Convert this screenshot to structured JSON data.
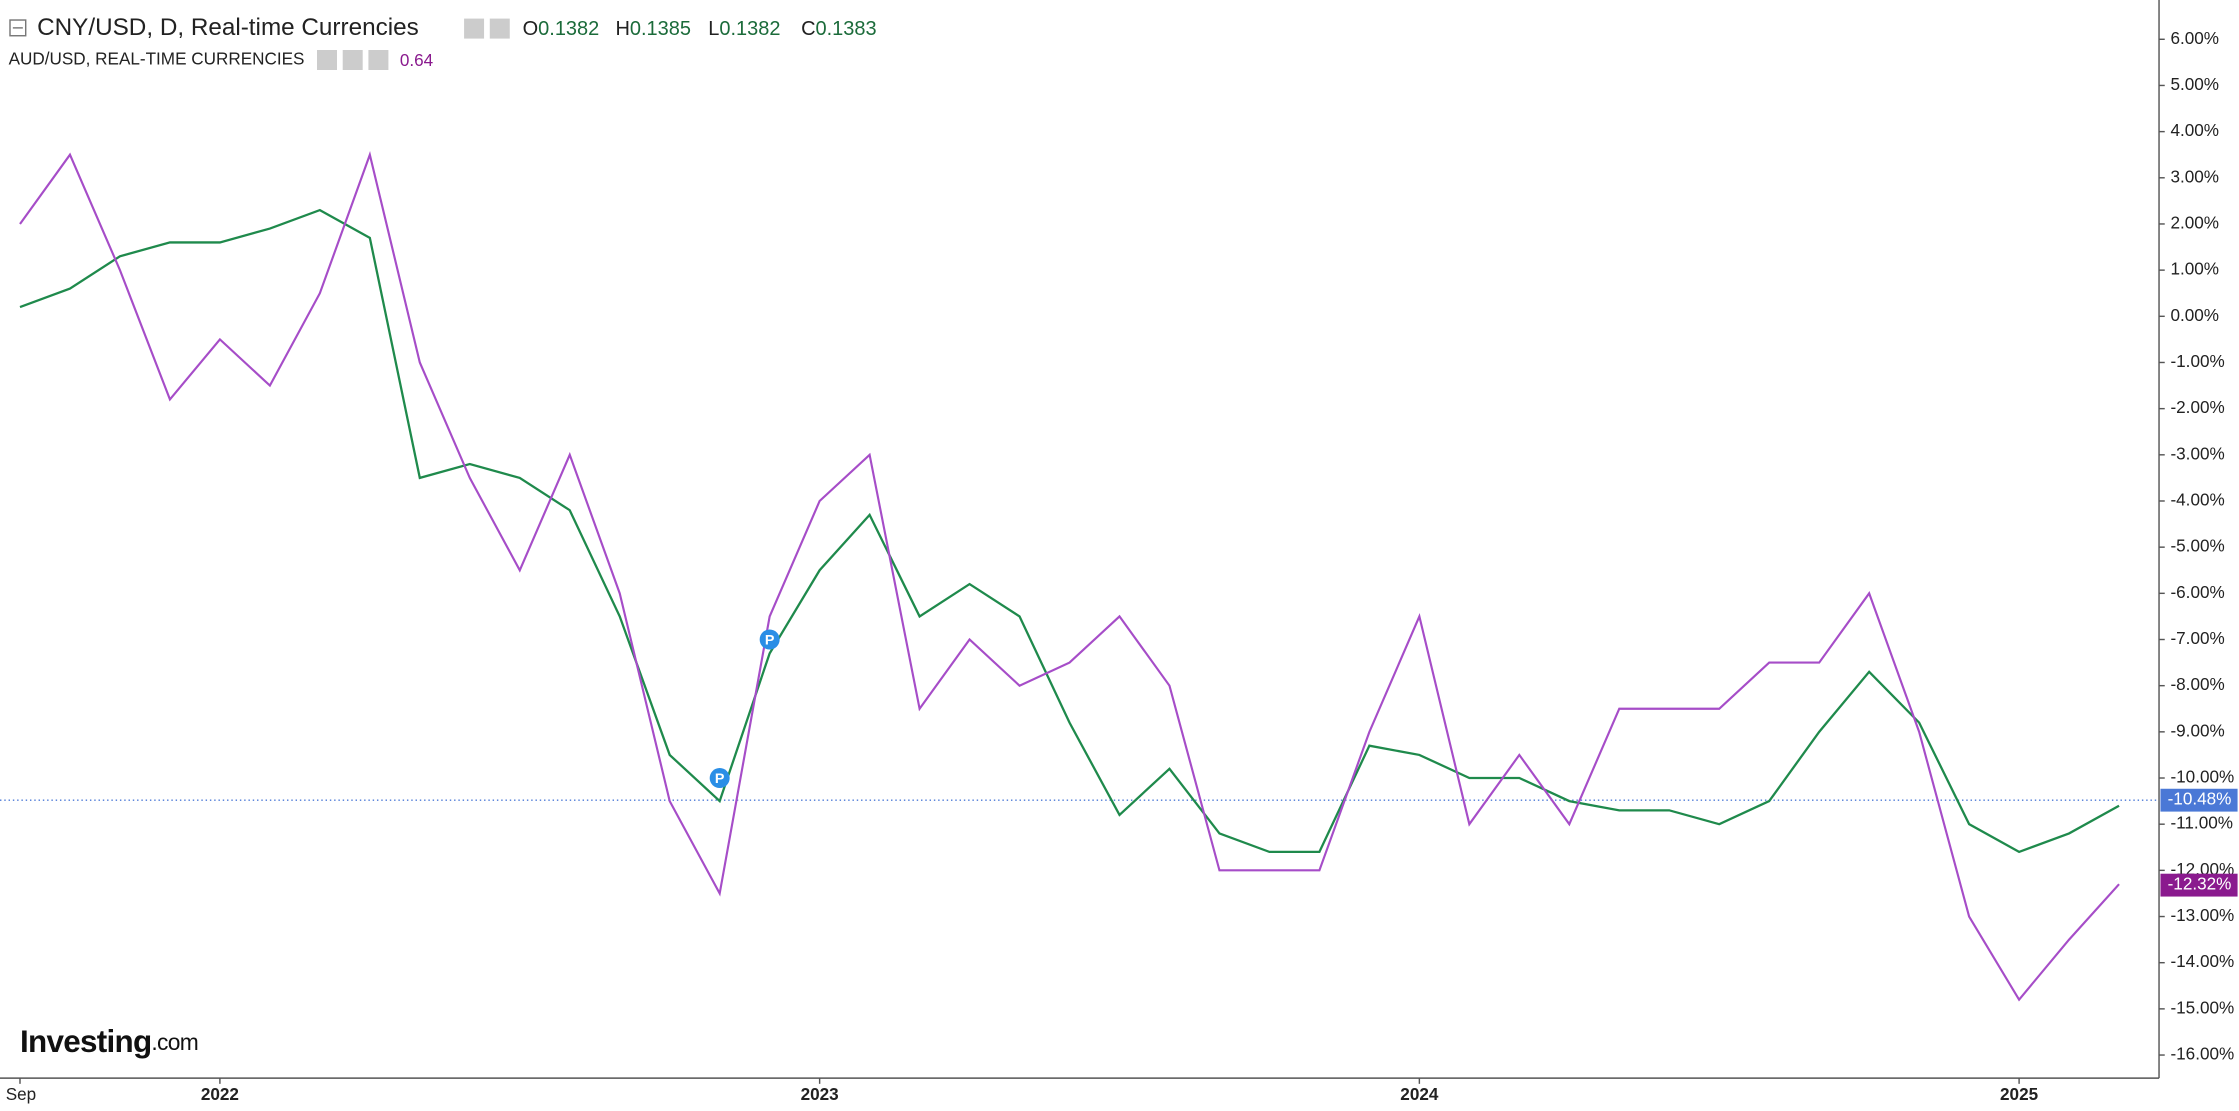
{
  "chart_data": {
    "type": "line",
    "header": {
      "symbol": "CNY/USD, D, Real-time Currencies",
      "ohlc": [
        {
          "key": "O",
          "value": "0.1382"
        },
        {
          "key": "H",
          "value": "0.1385"
        },
        {
          "key": "L",
          "value": "0.1382"
        },
        {
          "key": "C",
          "value": "0.1383"
        }
      ],
      "compare_symbol": "AUD/USD, REAL-TIME CURRENCIES",
      "compare_value": "0.64"
    },
    "logo": {
      "main": "Investing",
      "suffix": ".com"
    },
    "annotations": [
      {
        "text": "P",
        "category": 14,
        "y": -10
      },
      {
        "text": "P",
        "category": 15,
        "y": -7
      }
    ],
    "categories": [
      "Sep",
      null,
      null,
      null,
      "2022",
      null,
      null,
      null,
      null,
      null,
      null,
      null,
      null,
      null,
      null,
      null,
      "2023",
      null,
      null,
      null,
      null,
      null,
      null,
      null,
      null,
      null,
      null,
      null,
      "2024",
      null,
      null,
      null,
      null,
      null,
      null,
      null,
      null,
      null,
      null,
      null,
      "2025",
      null,
      null
    ],
    "series": [
      {
        "name": "CNY/USD",
        "color": "#1f8a4c",
        "values": [
          0.2,
          0.6,
          1.3,
          1.6,
          1.6,
          1.9,
          2.3,
          1.7,
          -3.5,
          -3.2,
          -3.5,
          -4.2,
          -6.5,
          -9.5,
          -10.5,
          -7.3,
          -5.5,
          -4.3,
          -6.5,
          -5.8,
          -6.5,
          -8.8,
          -10.8,
          -9.8,
          -11.2,
          -11.6,
          -11.6,
          -9.3,
          -9.5,
          -10,
          -10,
          -10.5,
          -10.7,
          -10.7,
          -11,
          -10.5,
          -9,
          -7.7,
          -8.8,
          -11,
          -11.6,
          -11.2,
          -10.6
        ]
      },
      {
        "name": "AUD/USD",
        "color": "#a64dc8",
        "values": [
          2.0,
          3.5,
          1,
          -1.8,
          -0.5,
          -1.5,
          0.5,
          3.5,
          -1,
          -3.5,
          -5.5,
          -3,
          -6,
          -10.5,
          -12.5,
          -6.5,
          -4,
          -3,
          -8.5,
          -7,
          -8,
          -7.5,
          -6.5,
          -8,
          -12,
          -12,
          -12,
          -9,
          -6.5,
          -11,
          -9.5,
          -11,
          -8.5,
          -8.5,
          -8.5,
          -7.5,
          -7.5,
          -6,
          -9,
          -13,
          -14.8,
          -13.5,
          -12.3
        ]
      }
    ],
    "price_tags": [
      {
        "value": -10.48,
        "label": "-10.48%",
        "color": "#4a78d6"
      },
      {
        "value": -12.32,
        "label": "-12.32%",
        "color": "#8a1a8e"
      }
    ],
    "ylim": [
      -16.5,
      6.85
    ],
    "yticks": [
      {
        "value": 6,
        "label": "6.00%"
      },
      {
        "value": 5,
        "label": "5.00%"
      },
      {
        "value": 4,
        "label": "4.00%"
      },
      {
        "value": 3,
        "label": "3.00%"
      },
      {
        "value": 2,
        "label": "2.00%"
      },
      {
        "value": 1,
        "label": "1.00%"
      },
      {
        "value": 0,
        "label": "0.00%"
      },
      {
        "value": -1,
        "label": "-1.00%"
      },
      {
        "value": -2,
        "label": "-2.00%"
      },
      {
        "value": -3,
        "label": "-3.00%"
      },
      {
        "value": -4,
        "label": "-4.00%"
      },
      {
        "value": -5,
        "label": "-5.00%"
      },
      {
        "value": -6,
        "label": "-6.00%"
      },
      {
        "value": -7,
        "label": "-7.00%"
      },
      {
        "value": -8,
        "label": "-8.00%"
      },
      {
        "value": -9,
        "label": "-9.00%"
      },
      {
        "value": -10,
        "label": "-10.00%"
      },
      {
        "value": -11,
        "label": "-11.00%"
      },
      {
        "value": -12,
        "label": "-12.00%"
      },
      {
        "value": -13,
        "label": "-13.00%"
      },
      {
        "value": -14,
        "label": "-14.00%"
      },
      {
        "value": -15,
        "label": "-15.00%"
      },
      {
        "value": -16,
        "label": "-16.00%"
      }
    ],
    "grid": false
  }
}
